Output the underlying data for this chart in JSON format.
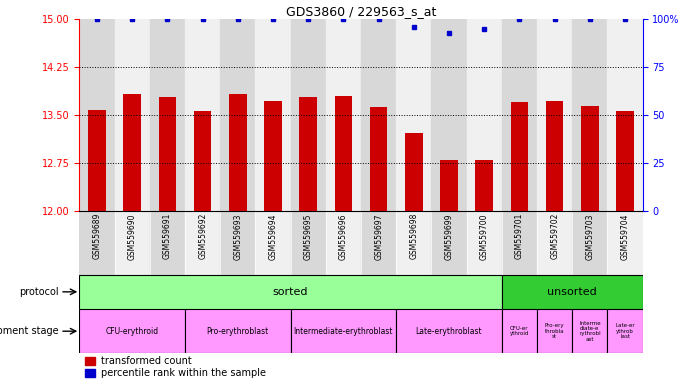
{
  "title": "GDS3860 / 229563_s_at",
  "samples": [
    "GSM559689",
    "GSM559690",
    "GSM559691",
    "GSM559692",
    "GSM559693",
    "GSM559694",
    "GSM559695",
    "GSM559696",
    "GSM559697",
    "GSM559698",
    "GSM559699",
    "GSM559700",
    "GSM559701",
    "GSM559702",
    "GSM559703",
    "GSM559704"
  ],
  "bar_values": [
    13.58,
    13.83,
    13.78,
    13.56,
    13.83,
    13.72,
    13.78,
    13.8,
    13.63,
    13.22,
    12.8,
    12.8,
    13.7,
    13.72,
    13.64,
    13.56
  ],
  "percentile_values": [
    100,
    100,
    100,
    100,
    100,
    100,
    100,
    100,
    100,
    96,
    93,
    95,
    100,
    100,
    100,
    100
  ],
  "bar_color": "#cc0000",
  "percentile_color": "#0000cc",
  "ylim_left": [
    12,
    15
  ],
  "ylim_right": [
    0,
    100
  ],
  "yticks_left": [
    12,
    12.75,
    13.5,
    14.25,
    15
  ],
  "yticks_right": [
    0,
    25,
    50,
    75,
    100
  ],
  "col_bg_even": "#d8d8d8",
  "col_bg_odd": "#f0f0f0",
  "protocol_sorted_count": 12,
  "protocol_unsorted_count": 4,
  "protocol_sorted_label": "sorted",
  "protocol_unsorted_label": "unsorted",
  "protocol_color_sorted": "#99ff99",
  "protocol_color_unsorted": "#33cc33",
  "dev_stage_labels_sorted": [
    "CFU-erythroid",
    "Pro-erythroblast",
    "Intermediate-erythroblast",
    "Late-erythroblast"
  ],
  "dev_stage_spans_sorted": [
    3,
    3,
    3,
    3
  ],
  "dev_stage_labels_unsorted": [
    "CFU-er\nythroid",
    "Pro-ery\nthrobla\nst",
    "Interme\ndiate-e\nrythrobl\nast",
    "Late-er\nythrob\nlast"
  ],
  "dev_stage_color": "#ff99ff",
  "background_color": "#ffffff"
}
